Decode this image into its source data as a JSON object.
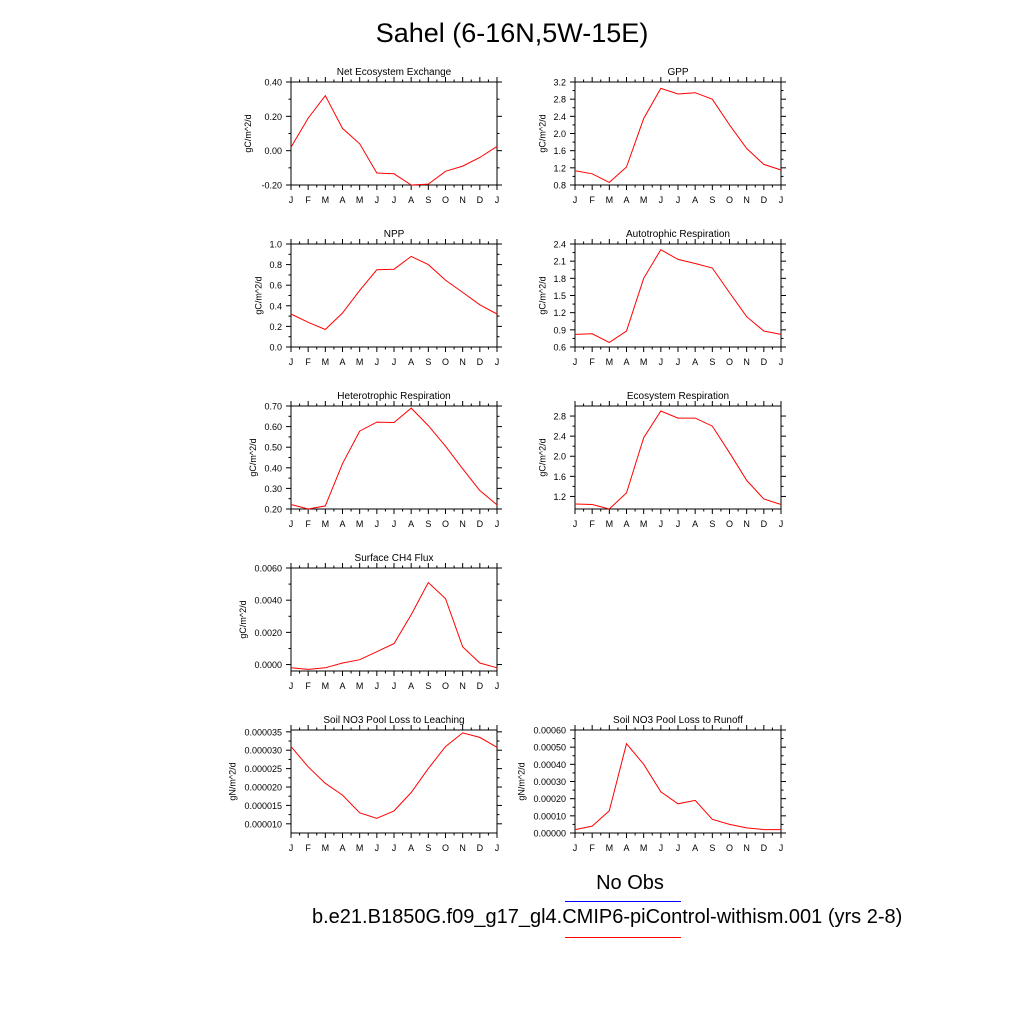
{
  "title": "Sahel (6-16N,5W-15E)",
  "line_color": "#ff0000",
  "legend": [
    {
      "label": "No Obs",
      "color": "#0000ff"
    },
    {
      "label": "b.e21.B1850G.f09_g17_gl4.CMIP6-piControl-withism.001 (yrs 2-8)",
      "color": "#ff0000"
    }
  ],
  "chart_data": [
    {
      "type": "line",
      "title": "Net Ecosystem Exchange",
      "ylabel": "gC/m^2/d",
      "categories": [
        "J",
        "F",
        "M",
        "A",
        "M",
        "J",
        "J",
        "A",
        "S",
        "O",
        "N",
        "D",
        "J"
      ],
      "ylim": [
        -0.2,
        0.4
      ],
      "yticks": [
        "0.40",
        "0.20",
        "0.00",
        "-0.20"
      ],
      "ytick_values": [
        0.4,
        0.2,
        0.0,
        -0.2
      ],
      "series": [
        {
          "values": [
            0.02,
            0.19,
            0.32,
            0.13,
            0.04,
            -0.13,
            -0.135,
            -0.2,
            -0.195,
            -0.12,
            -0.09,
            -0.04,
            0.025
          ]
        }
      ]
    },
    {
      "type": "line",
      "title": "GPP",
      "ylabel": "gC/m^2/d",
      "categories": [
        "J",
        "F",
        "M",
        "A",
        "M",
        "J",
        "J",
        "A",
        "S",
        "O",
        "N",
        "D",
        "J"
      ],
      "ylim": [
        0.8,
        3.2
      ],
      "yticks": [
        "3.2",
        "2.8",
        "2.4",
        "2.0",
        "1.6",
        "1.2",
        "0.8"
      ],
      "ytick_values": [
        3.2,
        2.8,
        2.4,
        2.0,
        1.6,
        1.2,
        0.8
      ],
      "series": [
        {
          "values": [
            1.13,
            1.06,
            0.86,
            1.22,
            2.35,
            3.05,
            2.92,
            2.95,
            2.8,
            2.2,
            1.65,
            1.28,
            1.15
          ]
        }
      ]
    },
    {
      "type": "line",
      "title": "NPP",
      "ylabel": "gC/m^2/d",
      "categories": [
        "J",
        "F",
        "M",
        "A",
        "M",
        "J",
        "J",
        "A",
        "S",
        "O",
        "N",
        "D",
        "J"
      ],
      "ylim": [
        0.0,
        1.0
      ],
      "yticks": [
        "1.0",
        "0.8",
        "0.6",
        "0.4",
        "0.2",
        "0.0"
      ],
      "ytick_values": [
        1.0,
        0.8,
        0.6,
        0.4,
        0.2,
        0.0
      ],
      "series": [
        {
          "values": [
            0.32,
            0.24,
            0.17,
            0.33,
            0.55,
            0.75,
            0.755,
            0.88,
            0.8,
            0.65,
            0.53,
            0.41,
            0.32
          ]
        }
      ]
    },
    {
      "type": "line",
      "title": "Autotrophic Respiration",
      "ylabel": "gC/m^2/d",
      "categories": [
        "J",
        "F",
        "M",
        "A",
        "M",
        "J",
        "J",
        "A",
        "S",
        "O",
        "N",
        "D",
        "J"
      ],
      "ylim": [
        0.6,
        2.4
      ],
      "yticks": [
        "2.4",
        "2.1",
        "1.8",
        "1.5",
        "1.2",
        "0.9",
        "0.6"
      ],
      "ytick_values": [
        2.4,
        2.1,
        1.8,
        1.5,
        1.2,
        0.9,
        0.6
      ],
      "series": [
        {
          "values": [
            0.82,
            0.83,
            0.68,
            0.88,
            1.8,
            2.3,
            2.13,
            2.06,
            1.98,
            1.55,
            1.13,
            0.88,
            0.82
          ]
        }
      ]
    },
    {
      "type": "line",
      "title": "Heterotrophic Respiration",
      "ylabel": "gC/m^2/d",
      "categories": [
        "J",
        "F",
        "M",
        "A",
        "M",
        "J",
        "J",
        "A",
        "S",
        "O",
        "N",
        "D",
        "J"
      ],
      "ylim": [
        0.2,
        0.7
      ],
      "yticks": [
        "0.70",
        "0.60",
        "0.50",
        "0.40",
        "0.30",
        "0.20"
      ],
      "ytick_values": [
        0.7,
        0.6,
        0.5,
        0.4,
        0.3,
        0.2
      ],
      "series": [
        {
          "values": [
            0.222,
            0.2,
            0.215,
            0.42,
            0.578,
            0.622,
            0.62,
            0.69,
            0.605,
            0.505,
            0.395,
            0.29,
            0.22
          ]
        }
      ]
    },
    {
      "type": "line",
      "title": "Ecosystem Respiration",
      "ylabel": "gC/m^2/d",
      "categories": [
        "J",
        "F",
        "M",
        "A",
        "M",
        "J",
        "J",
        "A",
        "S",
        "O",
        "N",
        "D",
        "J"
      ],
      "ylim": [
        0.95,
        3.0
      ],
      "yticks": [
        "2.8",
        "2.4",
        "2.0",
        "1.6",
        "1.2"
      ],
      "ytick_values": [
        2.8,
        2.4,
        2.0,
        1.6,
        1.2
      ],
      "series": [
        {
          "values": [
            1.05,
            1.04,
            0.95,
            1.27,
            2.37,
            2.9,
            2.76,
            2.76,
            2.6,
            2.07,
            1.52,
            1.15,
            1.04
          ]
        }
      ]
    },
    {
      "type": "line",
      "title": "Surface CH4 Flux",
      "ylabel": "gC/m^2/d",
      "categories": [
        "J",
        "F",
        "M",
        "A",
        "M",
        "J",
        "J",
        "A",
        "S",
        "O",
        "N",
        "D",
        "J"
      ],
      "ylim": [
        -0.0004,
        0.006
      ],
      "yticks": [
        "0.0060",
        "0.0040",
        "0.0020",
        "0.0000"
      ],
      "ytick_values": [
        0.006,
        0.004,
        0.002,
        0.0
      ],
      "series": [
        {
          "values": [
            -0.0002,
            -0.0003,
            -0.0002,
            0.0001,
            0.0003,
            0.0008,
            0.0013,
            0.0031,
            0.0051,
            0.0041,
            0.0011,
            0.0001,
            -0.0002
          ]
        }
      ]
    },
    {
      "type": "line",
      "title": "Soil NO3 Pool Loss to Leaching",
      "ylabel": "gN/m^2/d",
      "categories": [
        "J",
        "F",
        "M",
        "A",
        "M",
        "J",
        "J",
        "A",
        "S",
        "O",
        "N",
        "D",
        "J"
      ],
      "ylim": [
        7.5e-06,
        3.55e-05
      ],
      "yticks": [
        "0.000035",
        "0.000030",
        "0.000025",
        "0.000020",
        "0.000015",
        "0.000010"
      ],
      "ytick_values": [
        3.5e-05,
        3e-05,
        2.5e-05,
        2e-05,
        1.5e-05,
        1e-05
      ],
      "series": [
        {
          "values": [
            3.1e-05,
            2.55e-05,
            2.1e-05,
            1.78e-05,
            1.3e-05,
            1.15e-05,
            1.35e-05,
            1.85e-05,
            2.5e-05,
            3.1e-05,
            3.47e-05,
            3.35e-05,
            3.08e-05
          ]
        }
      ]
    },
    {
      "type": "line",
      "title": "Soil NO3 Pool Loss to Runoff",
      "ylabel": "gN/m^2/d",
      "categories": [
        "J",
        "F",
        "M",
        "A",
        "M",
        "J",
        "J",
        "A",
        "S",
        "O",
        "N",
        "D",
        "J"
      ],
      "ylim": [
        0.0,
        0.0006
      ],
      "yticks": [
        "0.00060",
        "0.00050",
        "0.00040",
        "0.00030",
        "0.00020",
        "0.00010",
        "0.00000"
      ],
      "ytick_values": [
        0.0006,
        0.0005,
        0.0004,
        0.0003,
        0.0002,
        0.0001,
        0.0
      ],
      "series": [
        {
          "values": [
            2e-05,
            4e-05,
            0.00013,
            0.00052,
            0.0004,
            0.00024,
            0.00017,
            0.00019,
            8e-05,
            5e-05,
            3e-05,
            2e-05,
            2e-05
          ]
        }
      ]
    }
  ]
}
